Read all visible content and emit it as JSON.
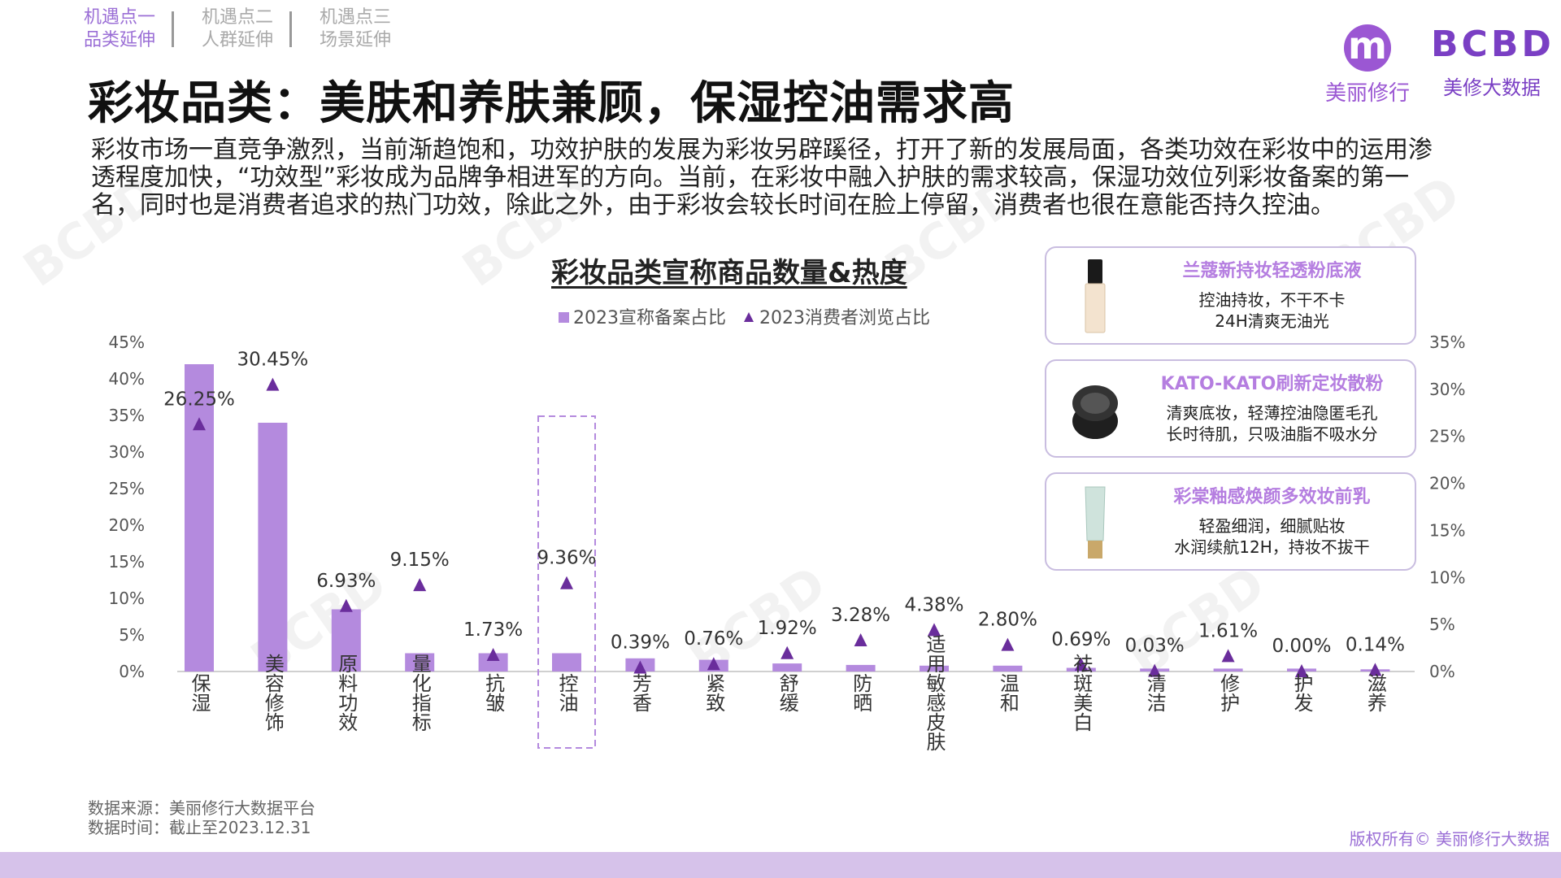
{
  "nav": [
    {
      "line1": "机遇点一",
      "line2": "品类延伸",
      "active": true
    },
    {
      "line1": "机遇点二",
      "line2": "人群延伸",
      "active": false
    },
    {
      "line1": "机遇点三",
      "line2": "场景延伸",
      "active": false
    }
  ],
  "title": "彩妆品类：美肤和养肤兼顾，保湿控油需求高",
  "intro": "彩妆市场一直竞争激烈，当前渐趋饱和，功效护肤的发展为彩妆另辟蹊径，打开了新的发展局面，各类功效在彩妆中的运用渗透程度加快，“功效型”彩妆成为品牌争相进军的方向。当前，在彩妆中融入护肤的需求较高，保湿功效位列彩妆备案的第一名，同时也是消费者追求的热门功效，除此之外，由于彩妆会较长时间在脸上停留，消费者也很在意能否持久控油。",
  "logos": {
    "brand1_mark": "m",
    "brand1_name": "美丽修行",
    "brand2_mark": "BCBD",
    "brand2_name": "美修大数据"
  },
  "chart_title": "彩妆品类宣称商品数量&热度",
  "chart_data": {
    "type": "bar",
    "categories": [
      "保湿",
      "美容修饰",
      "原料功效",
      "量化指标",
      "抗皱",
      "控油",
      "芳香",
      "紧致",
      "舒缓",
      "防晒",
      "适用敏感皮肤",
      "温和",
      "祛斑美白",
      "清洁",
      "修护",
      "护发",
      "滋养"
    ],
    "series": [
      {
        "name": "2023宣称备案占比",
        "type": "bar",
        "axis": "left",
        "values": [
          42,
          34,
          8.5,
          2.5,
          2.5,
          2.5,
          1.8,
          1.6,
          1.1,
          0.9,
          0.8,
          0.8,
          0.5,
          0.4,
          0.4,
          0.4,
          0.3
        ]
      },
      {
        "name": "2023消费者浏览占比",
        "type": "triangle",
        "axis": "right",
        "values": [
          26.25,
          30.45,
          6.93,
          9.15,
          1.73,
          9.36,
          0.39,
          0.76,
          1.92,
          3.28,
          4.38,
          2.8,
          0.69,
          0.03,
          1.61,
          0.0,
          0.14
        ],
        "labels": [
          "26.25%",
          "30.45%",
          "6.93%",
          "9.15%",
          "1.73%",
          "9.36%",
          "0.39%",
          "0.76%",
          "1.92%",
          "3.28%",
          "4.38%",
          "2.80%",
          "0.69%",
          "0.03%",
          "1.61%",
          "0.00%",
          "0.14%"
        ]
      }
    ],
    "left_axis": {
      "min": 0,
      "max": 45,
      "step": 5,
      "ticks": [
        "0%",
        "5%",
        "10%",
        "15%",
        "20%",
        "25%",
        "30%",
        "35%",
        "40%",
        "45%"
      ]
    },
    "right_axis": {
      "min": 0,
      "max": 35,
      "step": 5,
      "ticks": [
        "0%",
        "5%",
        "10%",
        "15%",
        "20%",
        "25%",
        "30%",
        "35%"
      ]
    },
    "highlight_category": "控油",
    "legend": {
      "position": "top-center"
    },
    "colors": {
      "bar": "#b48ade",
      "triangle": "#6a2d9c",
      "highlight_border": "#b48ade"
    }
  },
  "products": [
    {
      "name": "兰蔻新持妆轻透粉底液",
      "line1": "控油持妆，不干不卡",
      "line2": "24H清爽无油光",
      "icon": "foundation-bottle-icon"
    },
    {
      "name": "KATO-KATO刷新定妆散粉",
      "line1": "清爽底妆，轻薄控油隐匿毛孔",
      "line2": "长时待肌，只吸油脂不吸水分",
      "icon": "powder-compact-icon"
    },
    {
      "name": "彩棠釉感焕颜多效妆前乳",
      "line1": "轻盈细润，细腻贴妆",
      "line2": "水润续航12H，持妆不拔干",
      "icon": "primer-tube-icon"
    }
  ],
  "source": {
    "line1": "数据来源：美丽修行大数据平台",
    "line2": "数据时间：截止至2023.12.31"
  },
  "copyright": "版权所有© 美丽修行大数据"
}
